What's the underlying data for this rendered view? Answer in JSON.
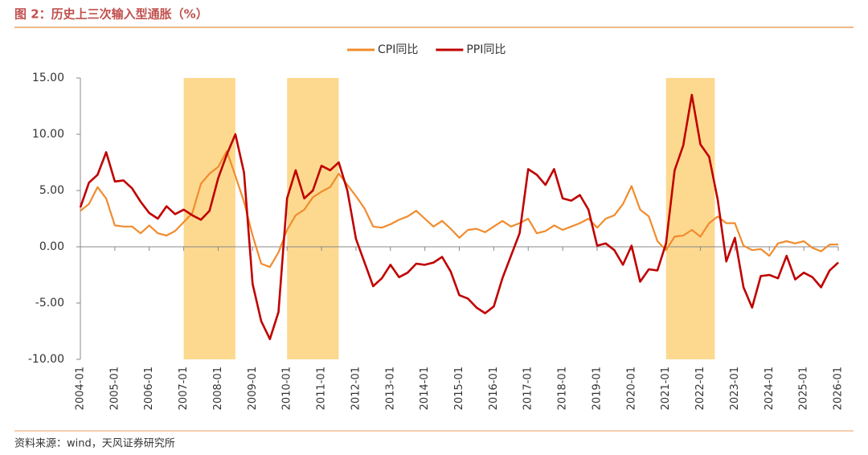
{
  "chart_data": {
    "type": "line",
    "title": "图 2：历史上三次输入型通胀（%）",
    "source": "资料来源：wind，天风证券研究所",
    "categories": [
      "2004-01",
      null,
      null,
      null,
      "2005-01",
      null,
      null,
      null,
      "2006-01",
      null,
      null,
      null,
      "2007-01",
      null,
      null,
      null,
      "2008-01",
      null,
      null,
      null,
      "2009-01",
      null,
      null,
      null,
      "2010-01",
      null,
      null,
      null,
      "2011-01",
      null,
      null,
      null,
      "2012-01",
      null,
      null,
      null,
      "2013-01",
      null,
      null,
      null,
      "2014-01",
      null,
      null,
      null,
      "2015-01",
      null,
      null,
      null,
      "2016-01",
      null,
      null,
      null,
      "2017-01",
      null,
      null,
      null,
      "2018-01",
      null,
      null,
      null,
      "2019-01",
      null,
      null,
      null,
      "2020-01",
      null,
      null,
      null,
      "2021-01",
      null,
      null,
      null,
      "2022-01",
      null,
      null,
      null,
      "2023-01",
      null,
      null,
      null,
      "2024-01",
      null,
      null,
      null,
      "2025-01",
      null,
      null,
      null,
      "2026-01"
    ],
    "series": [
      {
        "name": "CPI同比",
        "color": "#f08c2e",
        "values": [
          3.2,
          3.8,
          5.3,
          4.3,
          1.9,
          1.8,
          1.8,
          1.2,
          1.9,
          1.2,
          1.0,
          1.4,
          2.2,
          3.0,
          5.6,
          6.5,
          7.1,
          8.5,
          6.3,
          4.0,
          1.0,
          -1.5,
          -1.8,
          -0.5,
          1.5,
          2.8,
          3.3,
          4.4,
          4.9,
          5.3,
          6.5,
          5.5,
          4.5,
          3.4,
          1.8,
          1.7,
          2.0,
          2.4,
          2.7,
          3.2,
          2.5,
          1.8,
          2.3,
          1.6,
          0.8,
          1.5,
          1.6,
          1.3,
          1.8,
          2.3,
          1.8,
          2.1,
          2.5,
          1.2,
          1.4,
          1.9,
          1.5,
          1.8,
          2.1,
          2.5,
          1.7,
          2.5,
          2.8,
          3.8,
          5.4,
          3.3,
          2.7,
          0.5,
          -0.3,
          0.9,
          1.0,
          1.5,
          0.9,
          2.1,
          2.7,
          2.1,
          2.1,
          0.1,
          -0.3,
          -0.2,
          -0.8,
          0.3,
          0.5,
          0.3,
          0.5,
          -0.1,
          -0.4,
          0.2,
          0.2
        ]
      },
      {
        "name": "PPI同比",
        "color": "#c00000",
        "values": [
          3.5,
          5.7,
          6.4,
          8.4,
          5.8,
          5.9,
          5.2,
          4.0,
          3.0,
          2.5,
          3.6,
          2.9,
          3.3,
          2.8,
          2.4,
          3.2,
          6.1,
          8.2,
          10.0,
          6.6,
          -3.3,
          -6.6,
          -8.2,
          -5.8,
          4.3,
          6.8,
          4.3,
          5.0,
          7.2,
          6.8,
          7.5,
          5.0,
          0.7,
          -1.4,
          -3.5,
          -2.8,
          -1.6,
          -2.7,
          -2.3,
          -1.5,
          -1.6,
          -1.4,
          -0.9,
          -2.2,
          -4.3,
          -4.6,
          -5.4,
          -5.9,
          -5.3,
          -2.8,
          -0.8,
          1.2,
          6.9,
          6.4,
          5.5,
          6.9,
          4.3,
          4.1,
          4.6,
          3.3,
          0.1,
          0.3,
          -0.3,
          -1.6,
          0.1,
          -3.1,
          -2.0,
          -2.1,
          0.3,
          6.8,
          9.0,
          13.5,
          9.1,
          8.0,
          4.2,
          -1.3,
          0.8,
          -3.6,
          -5.4,
          -2.6,
          -2.5,
          -2.8,
          -0.8,
          -2.9,
          -2.3,
          -2.7,
          -3.6,
          -2.1,
          -1.4
        ]
      }
    ],
    "highlight_ranges": [
      [
        "2007-01",
        "2008-07"
      ],
      [
        "2010-01",
        "2011-07"
      ],
      [
        "2021-01",
        "2022-06"
      ]
    ],
    "highlight_color": "#fdd98f",
    "ylim": [
      -10,
      15
    ],
    "yticks": [
      {
        "value": -10,
        "label": "-10.00"
      },
      {
        "value": -5,
        "label": "-5.00"
      },
      {
        "value": 0,
        "label": "0.00"
      },
      {
        "value": 5,
        "label": "5.00"
      },
      {
        "value": 10,
        "label": "10.00"
      },
      {
        "value": 15,
        "label": "15.00"
      }
    ],
    "legend": "top"
  }
}
